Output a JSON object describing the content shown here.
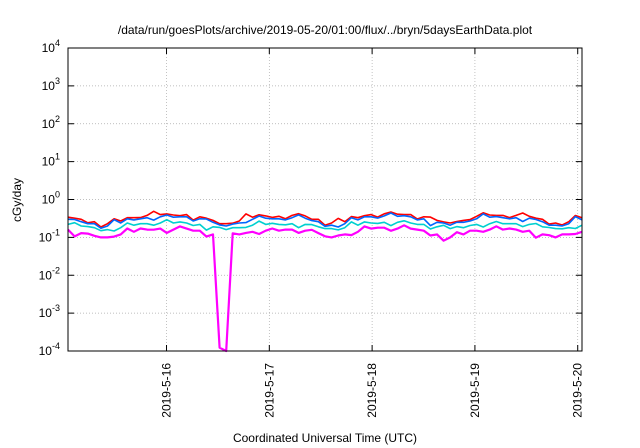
{
  "chart_data": {
    "type": "line",
    "title": "/data/run/goesPlots/archive/2019-05-20/01:00/flux/../bryn/5daysEarthData.plot",
    "xlabel": "Coordinated Universal Time (UTC)",
    "ylabel": "cGy/day",
    "yscale": "log",
    "ylim": [
      0.0001,
      10000
    ],
    "xlim": [
      "2019-05-15T01:00",
      "2019-05-20T01:00"
    ],
    "grid": true,
    "y_ticks": [
      {
        "base": "10",
        "exp": "-4"
      },
      {
        "base": "10",
        "exp": "-3"
      },
      {
        "base": "10",
        "exp": "-2"
      },
      {
        "base": "10",
        "exp": "-1"
      },
      {
        "base": "10",
        "exp": "0"
      },
      {
        "base": "10",
        "exp": "1"
      },
      {
        "base": "10",
        "exp": "2"
      },
      {
        "base": "10",
        "exp": "3"
      },
      {
        "base": "10",
        "exp": "4"
      }
    ],
    "x_ticks": [
      "2019-5-16",
      "2019-5-17",
      "2019-5-18",
      "2019-5-19",
      "2019-5-20"
    ],
    "series": [
      {
        "color": "#ff0000",
        "values": [
          0.34,
          0.3,
          0.26,
          0.23,
          0.27,
          0.33,
          0.38,
          0.4,
          0.39,
          0.4,
          0.35,
          0.28,
          0.23,
          0.27,
          0.34,
          0.37,
          0.36,
          0.38,
          0.37,
          0.3,
          0.24,
          0.26,
          0.33,
          0.4,
          0.42,
          0.41,
          0.4,
          0.35,
          0.28,
          0.24,
          0.28,
          0.36,
          0.39,
          0.38,
          0.38,
          0.36,
          0.3,
          0.24,
          0.26,
          0.33
        ]
      },
      {
        "color": "#0066ff",
        "values": [
          0.3,
          0.26,
          0.23,
          0.2,
          0.24,
          0.29,
          0.33,
          0.35,
          0.34,
          0.35,
          0.31,
          0.25,
          0.2,
          0.24,
          0.3,
          0.32,
          0.31,
          0.33,
          0.32,
          0.26,
          0.21,
          0.23,
          0.29,
          0.35,
          0.37,
          0.36,
          0.35,
          0.31,
          0.25,
          0.21,
          0.25,
          0.31,
          0.34,
          0.33,
          0.33,
          0.32,
          0.26,
          0.21,
          0.23,
          0.29
        ]
      },
      {
        "color": "#00d0d0",
        "values": [
          0.22,
          0.2,
          0.18,
          0.16,
          0.18,
          0.21,
          0.23,
          0.24,
          0.24,
          0.24,
          0.22,
          0.19,
          0.16,
          0.18,
          0.21,
          0.22,
          0.22,
          0.23,
          0.22,
          0.19,
          0.17,
          0.18,
          0.21,
          0.24,
          0.25,
          0.25,
          0.24,
          0.22,
          0.19,
          0.17,
          0.18,
          0.22,
          0.23,
          0.23,
          0.23,
          0.22,
          0.19,
          0.17,
          0.18,
          0.21
        ]
      },
      {
        "color": "#ff00ff",
        "values": [
          0.16,
          0.13,
          0.11,
          0.1,
          0.12,
          0.14,
          0.16,
          0.17,
          0.16,
          0.17,
          0.15,
          0.12,
          0.0001,
          0.12,
          0.14,
          0.15,
          0.15,
          0.16,
          0.15,
          0.13,
          0.1,
          0.12,
          0.14,
          0.17,
          0.18,
          0.17,
          0.17,
          0.15,
          0.12,
          0.1,
          0.12,
          0.15,
          0.16,
          0.16,
          0.16,
          0.15,
          0.12,
          0.1,
          0.12,
          0.14
        ]
      }
    ]
  }
}
